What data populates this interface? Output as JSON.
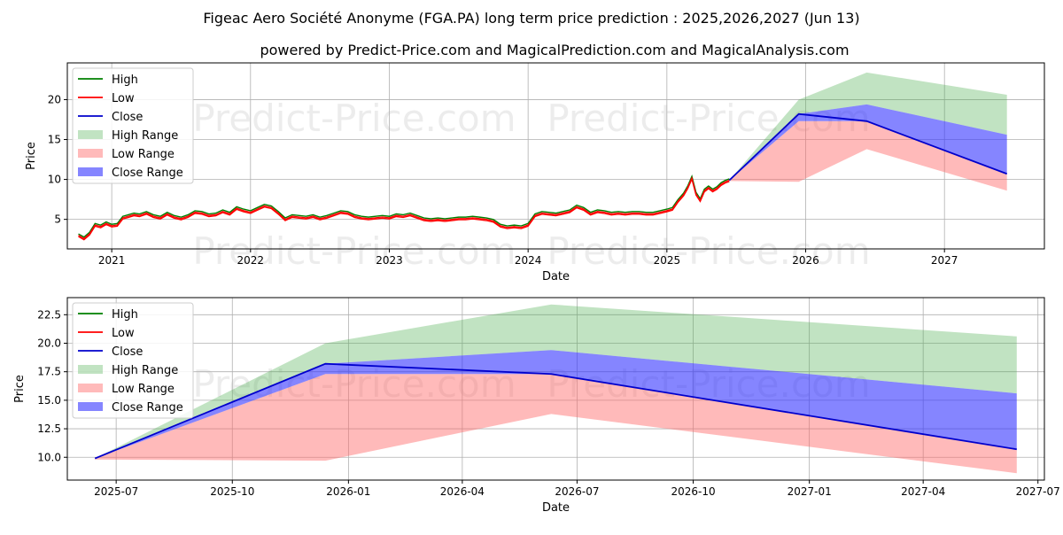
{
  "title": "Figeac Aero Société Anonyme (FGA.PA) long term price prediction : 2025,2026,2027 (Jun 13)",
  "subtitle": "powered by Predict-Price.com and MagicalPrediction.com and MagicalAnalysis.com",
  "watermark": "Predict-Price.com",
  "colors": {
    "high": "#008000",
    "low": "#ff0000",
    "close": "#0000cc",
    "high_range": "#4caf50",
    "low_range": "#ff6666",
    "close_range": "#3333ff",
    "grid": "#b0b0b0"
  },
  "legend": [
    "High",
    "Low",
    "Close",
    "High Range",
    "Low Range",
    "Close Range"
  ],
  "chart_data": [
    {
      "type": "line",
      "panel": "long-term",
      "xlabel": "Date",
      "ylabel": "Price",
      "xlim": [
        2020.68,
        2027.72
      ],
      "ylim": [
        1.3,
        24.6
      ],
      "xticks": [
        2021,
        2022,
        2023,
        2024,
        2025,
        2026,
        2027
      ],
      "xtick_labels": [
        "2021",
        "2022",
        "2023",
        "2024",
        "2025",
        "2026",
        "2027"
      ],
      "yticks": [
        5,
        10,
        15,
        20
      ],
      "ytick_labels": [
        "5",
        "10",
        "15",
        "20"
      ],
      "history": {
        "x": [
          2020.76,
          2020.8,
          2020.84,
          2020.88,
          2020.92,
          2020.96,
          2021.0,
          2021.04,
          2021.08,
          2021.12,
          2021.16,
          2021.2,
          2021.25,
          2021.3,
          2021.35,
          2021.4,
          2021.45,
          2021.5,
          2021.55,
          2021.6,
          2021.65,
          2021.7,
          2021.75,
          2021.8,
          2021.85,
          2021.9,
          2021.95,
          2022.0,
          2022.05,
          2022.1,
          2022.15,
          2022.2,
          2022.25,
          2022.3,
          2022.35,
          2022.4,
          2022.45,
          2022.5,
          2022.55,
          2022.6,
          2022.65,
          2022.7,
          2022.75,
          2022.8,
          2022.85,
          2022.9,
          2022.95,
          2023.0,
          2023.05,
          2023.1,
          2023.15,
          2023.2,
          2023.25,
          2023.3,
          2023.35,
          2023.4,
          2023.45,
          2023.5,
          2023.55,
          2023.6,
          2023.65,
          2023.7,
          2023.75,
          2023.8,
          2023.85,
          2023.9,
          2023.95,
          2024.0,
          2024.05,
          2024.1,
          2024.15,
          2024.2,
          2024.25,
          2024.3,
          2024.35,
          2024.4,
          2024.45,
          2024.5,
          2024.55,
          2024.6,
          2024.65,
          2024.7,
          2024.75,
          2024.8,
          2024.85,
          2024.9,
          2024.95,
          2025.0,
          2025.04,
          2025.08,
          2025.12,
          2025.15,
          2025.18,
          2025.21,
          2025.24,
          2025.27,
          2025.3,
          2025.33,
          2025.36,
          2025.39,
          2025.42,
          2025.45
        ],
        "close": [
          3.0,
          2.6,
          3.2,
          4.3,
          4.1,
          4.5,
          4.2,
          4.3,
          5.2,
          5.4,
          5.6,
          5.5,
          5.8,
          5.4,
          5.2,
          5.7,
          5.3,
          5.1,
          5.4,
          5.9,
          5.8,
          5.5,
          5.6,
          6.0,
          5.7,
          6.4,
          6.1,
          5.9,
          6.3,
          6.7,
          6.5,
          5.8,
          5.0,
          5.4,
          5.3,
          5.2,
          5.4,
          5.1,
          5.3,
          5.6,
          5.9,
          5.8,
          5.4,
          5.2,
          5.1,
          5.2,
          5.3,
          5.2,
          5.5,
          5.4,
          5.6,
          5.3,
          5.0,
          4.9,
          5.0,
          4.9,
          5.0,
          5.1,
          5.1,
          5.2,
          5.1,
          5.0,
          4.8,
          4.2,
          4.0,
          4.1,
          4.0,
          4.3,
          5.5,
          5.8,
          5.7,
          5.6,
          5.8,
          6.0,
          6.6,
          6.3,
          5.7,
          6.0,
          5.9,
          5.7,
          5.8,
          5.7,
          5.8,
          5.8,
          5.7,
          5.7,
          5.9,
          6.1,
          6.3,
          7.3,
          8.1,
          9.0,
          10.2,
          8.2,
          7.4,
          8.6,
          9.0,
          8.6,
          8.9,
          9.4,
          9.7,
          9.9
        ]
      },
      "forecast": {
        "x": [
          2025.45,
          2025.95,
          2026.44,
          2027.45
        ],
        "close": [
          9.9,
          18.2,
          17.3,
          10.7
        ],
        "high_range": [
          9.9,
          20.0,
          23.4,
          20.6
        ],
        "low_range": [
          9.8,
          9.7,
          13.8,
          8.6
        ],
        "close_range_upper": [
          9.9,
          18.2,
          19.4,
          15.6
        ],
        "close_range_lower": [
          9.9,
          17.3,
          17.3,
          10.7
        ]
      }
    },
    {
      "type": "line",
      "panel": "forecast-detail",
      "xlabel": "Date",
      "ylabel": "Price",
      "xlim": [
        2025.39,
        2027.51
      ],
      "ylim": [
        8.0,
        24.0
      ],
      "xticks": [
        2025.496,
        2025.748,
        2026.0,
        2026.247,
        2026.496,
        2026.748,
        2027.0,
        2027.247,
        2027.496
      ],
      "xtick_labels": [
        "2025-07",
        "2025-10",
        "2026-01",
        "2026-04",
        "2026-07",
        "2026-10",
        "2027-01",
        "2027-04",
        "2027-07"
      ],
      "yticks": [
        10.0,
        12.5,
        15.0,
        17.5,
        20.0,
        22.5
      ],
      "ytick_labels": [
        "10.0",
        "12.5",
        "15.0",
        "17.5",
        "20.0",
        "22.5"
      ],
      "forecast": {
        "x": [
          2025.45,
          2025.95,
          2026.44,
          2027.45
        ],
        "close": [
          9.9,
          18.2,
          17.3,
          10.7
        ],
        "high_range": [
          9.9,
          20.0,
          23.4,
          20.6
        ],
        "low_range": [
          9.8,
          9.7,
          13.8,
          8.6
        ],
        "close_range_upper": [
          9.9,
          18.2,
          19.4,
          15.6
        ],
        "close_range_lower": [
          9.9,
          17.3,
          17.3,
          10.7
        ]
      }
    }
  ]
}
